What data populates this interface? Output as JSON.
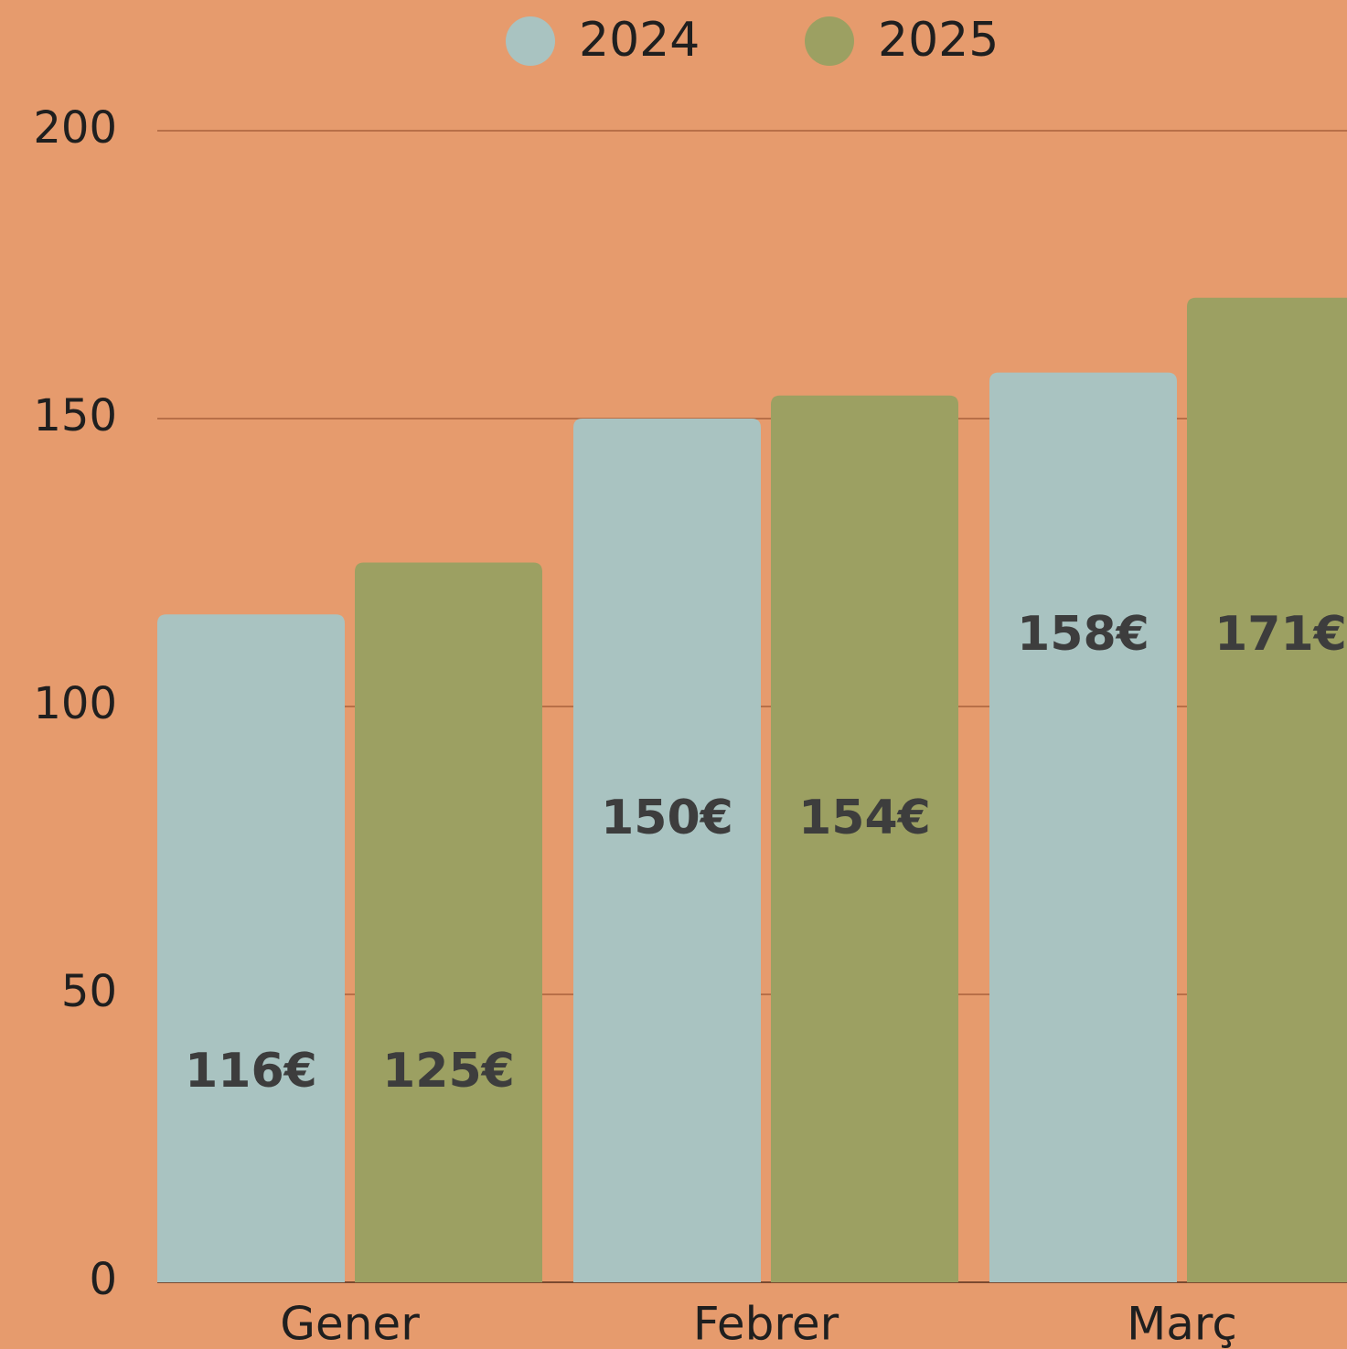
{
  "chart_data": {
    "type": "bar",
    "categories": [
      "Gener",
      "Febrer",
      "Març"
    ],
    "series": [
      {
        "name": "2024",
        "color": "#a9c3c1",
        "values": [
          116,
          150,
          158
        ],
        "value_labels": [
          "116€",
          "150€",
          "158€"
        ]
      },
      {
        "name": "2025",
        "color": "#9ca062",
        "values": [
          125,
          154,
          171
        ],
        "value_labels": [
          "125€",
          "154€",
          "171€"
        ]
      }
    ],
    "ylim": [
      0,
      200
    ],
    "yticks": [
      0,
      50,
      100,
      150,
      200
    ],
    "grid": true,
    "legend": "top"
  }
}
